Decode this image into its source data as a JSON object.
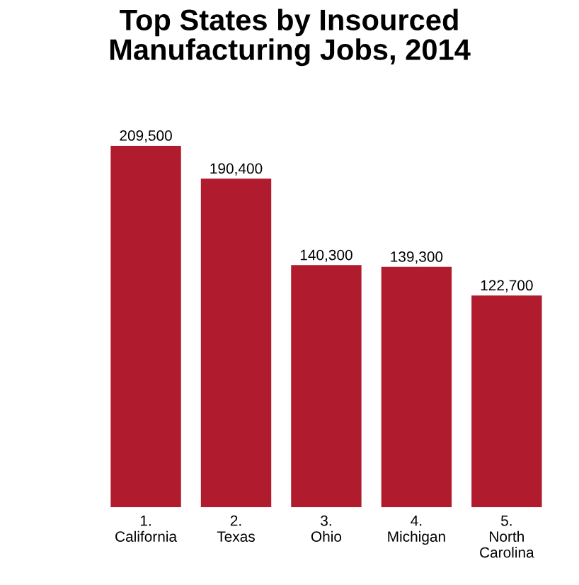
{
  "chart_data": {
    "type": "bar",
    "title": "Top States by Insourced\nManufacturing Jobs, 2014",
    "categories": [
      "1.\nCalifornia",
      "2.\nTexas",
      "3.\nOhio",
      "4.\nMichigan",
      "5.\nNorth\nCarolina"
    ],
    "values": [
      209500,
      190400,
      140300,
      139300,
      122700
    ],
    "value_labels": [
      "209,500",
      "190,400",
      "140,300",
      "139,300",
      "122,700"
    ],
    "color": "#b01c2e"
  }
}
